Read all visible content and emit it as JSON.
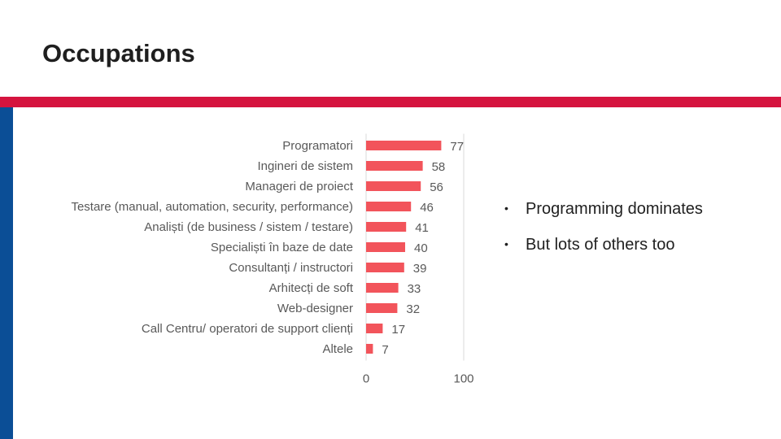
{
  "slide": {
    "title": "Occupations",
    "bullets": [
      "Programming dominates",
      "But lots of others too"
    ]
  },
  "colors": {
    "accent_band": "#d5143f",
    "side_bar": "#0b4e96",
    "bar_fill": "#f2545b",
    "axis_line": "#d9d9d9",
    "label_text": "#595959"
  },
  "chart_data": {
    "type": "bar",
    "orientation": "horizontal",
    "title": "",
    "xlabel": "",
    "ylabel": "",
    "xlim": [
      0,
      100
    ],
    "x_ticks": [
      0,
      100
    ],
    "grid": false,
    "categories": [
      "Programatori",
      "Ingineri de sistem",
      "Manageri de proiect",
      "Testare (manual, automation, security, performance)",
      "Analiști (de business / sistem / testare)",
      "Specialiști în baze de date",
      "Consultanți / instructori",
      "Arhitecți de soft",
      "Web-designer",
      "Call Centru/ operatori de support clienți",
      "Altele"
    ],
    "values": [
      77,
      58,
      56,
      46,
      41,
      40,
      39,
      33,
      32,
      17,
      7
    ]
  }
}
